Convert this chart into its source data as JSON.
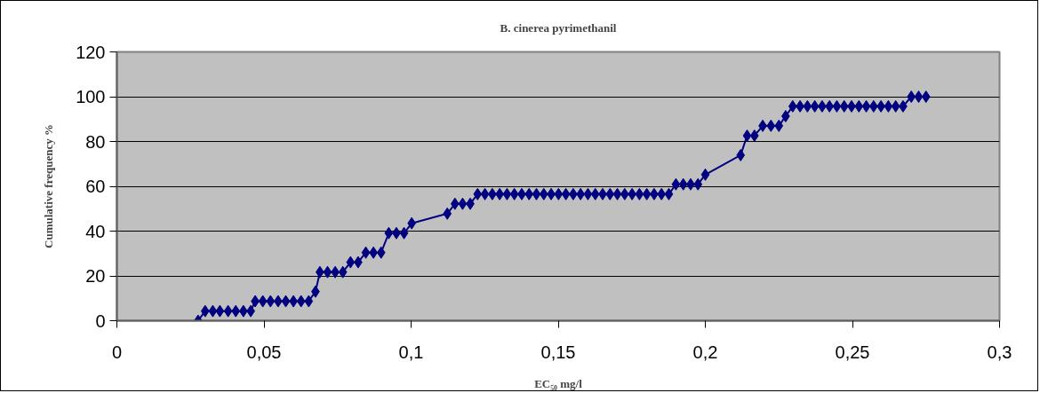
{
  "chart_data": {
    "type": "line",
    "title": "B. cinerea pyrimethanil",
    "xlabel": "EC₅₀ mg/l",
    "ylabel": "Cumulative frequency %",
    "xlim": [
      0,
      0.3
    ],
    "xticks": [
      0,
      {
        "value": 0.05,
        "label": "0,05"
      },
      {
        "value": 0.1,
        "label": "0,1"
      },
      {
        "value": 0.15,
        "label": "0,15"
      },
      {
        "value": 0.2,
        "label": "0,2"
      },
      {
        "value": 0.25,
        "label": "0,25"
      },
      {
        "value": 0.3,
        "label": "0,3"
      }
    ],
    "ylim": [
      0,
      120
    ],
    "yticks": [
      0,
      20,
      40,
      60,
      80,
      100,
      120
    ],
    "grid": "y",
    "marker": "diamond",
    "line_style": "solid",
    "series": [
      {
        "color": "#000080",
        "x": [
          0.0276,
          0.03,
          0.0326,
          0.035,
          0.0378,
          0.0404,
          0.043,
          0.0455,
          0.047,
          0.0496,
          0.0522,
          0.0548,
          0.0574,
          0.06,
          0.0626,
          0.0652,
          0.0675,
          0.069,
          0.0716,
          0.0742,
          0.0768,
          0.0794,
          0.082,
          0.0846,
          0.0872,
          0.0898,
          0.0924,
          0.095,
          0.0976,
          0.1002,
          0.1123,
          0.1149,
          0.1175,
          0.1201,
          0.1226,
          0.1251,
          0.1276,
          0.1301,
          0.1326,
          0.1351,
          0.1376,
          0.1401,
          0.1426,
          0.1451,
          0.1476,
          0.1501,
          0.1526,
          0.1551,
          0.1576,
          0.1601,
          0.1626,
          0.1651,
          0.1676,
          0.1701,
          0.1726,
          0.1751,
          0.1776,
          0.1801,
          0.1826,
          0.1851,
          0.1876,
          0.19,
          0.1925,
          0.195,
          0.1975,
          0.2,
          0.212,
          0.2142,
          0.2167,
          0.2195,
          0.2223,
          0.225,
          0.2273,
          0.2297,
          0.2322,
          0.2347,
          0.2372,
          0.2397,
          0.2422,
          0.2447,
          0.2472,
          0.2497,
          0.2522,
          0.2547,
          0.2572,
          0.2597,
          0.2622,
          0.2647,
          0.2672,
          0.27,
          0.2725,
          0.275
        ],
        "values": [
          0,
          4.3,
          4.3,
          4.3,
          4.3,
          4.3,
          4.3,
          4.3,
          8.7,
          8.7,
          8.7,
          8.7,
          8.7,
          8.7,
          8.7,
          8.7,
          13,
          21.7,
          21.7,
          21.7,
          21.7,
          26.1,
          26.1,
          30.4,
          30.4,
          30.4,
          39.1,
          39.1,
          39.1,
          43.5,
          47.8,
          52.2,
          52.2,
          52.2,
          56.5,
          56.5,
          56.5,
          56.5,
          56.5,
          56.5,
          56.5,
          56.5,
          56.5,
          56.5,
          56.5,
          56.5,
          56.5,
          56.5,
          56.5,
          56.5,
          56.5,
          56.5,
          56.5,
          56.5,
          56.5,
          56.5,
          56.5,
          56.5,
          56.5,
          56.5,
          56.5,
          60.9,
          60.9,
          60.9,
          60.9,
          65.2,
          73.9,
          82.6,
          82.6,
          87,
          87,
          87,
          91.3,
          95.7,
          95.7,
          95.7,
          95.7,
          95.7,
          95.7,
          95.7,
          95.7,
          95.7,
          95.7,
          95.7,
          95.7,
          95.7,
          95.7,
          95.7,
          95.7,
          100,
          100,
          100
        ]
      }
    ]
  }
}
